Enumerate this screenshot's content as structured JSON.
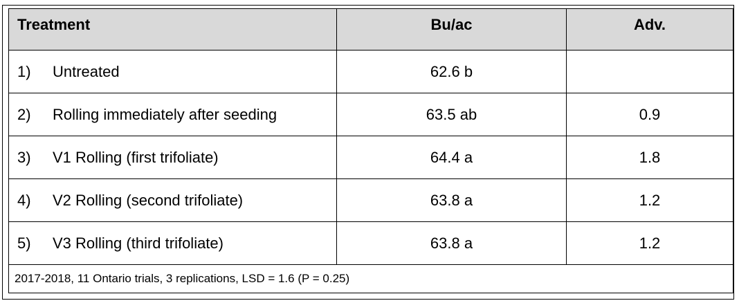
{
  "table": {
    "header": [
      "Treatment",
      "Bu/ac",
      "Adv."
    ],
    "rows": [
      {
        "number": "1)",
        "treatment": "Untreated",
        "yield": "62.6 b"
      },
      {
        "number": "2)",
        "treatment": "Rolling immediately after seeding",
        "yield": "63.5 ab",
        "adv": 0.9
      },
      {
        "number": "3)",
        "treatment": "V1 Rolling (first trifoliate)",
        "yield": "64.4 a",
        "adv": 1.8
      },
      {
        "number": "4)",
        "treatment": "V2 Rolling (second trifoliate)",
        "yield": "63.8 a",
        "adv": 1.2
      },
      {
        "number": "5)",
        "treatment": "V3 Rolling (third trifoliate)",
        "yield": "63.8 a",
        "adv": 1.2
      }
    ],
    "footnote": "2017-2018, 11 Ontario trials, 3 replications, LSD = 1.6 (P = 0.25)"
  }
}
